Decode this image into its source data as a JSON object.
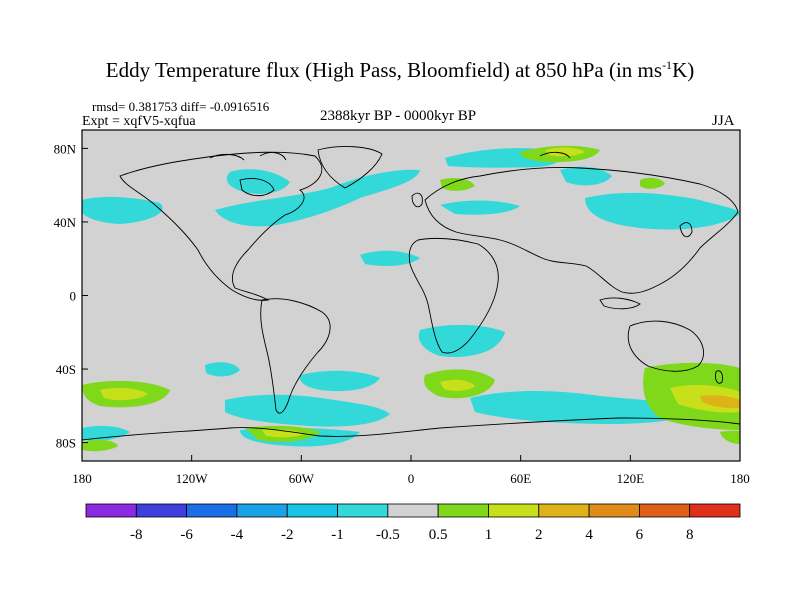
{
  "title": {
    "main": "Eddy Temperature flux (High Pass, Bloomfield) at 850 hPa (in ms",
    "sup": "-1",
    "unit_end": "K)"
  },
  "stats_line": "rmsd= 0.381753 diff= -0.0916516",
  "experiment": "Expt = xqfV5-xqfua",
  "period": "2388kyr BP - 0000kyr BP",
  "season": "JJA",
  "map": {
    "lon_range": [
      -180,
      180
    ],
    "lat_range": [
      -90,
      90
    ],
    "x_ticks": [
      {
        "lon": -180,
        "label": "180"
      },
      {
        "lon": -120,
        "label": "120W"
      },
      {
        "lon": -60,
        "label": "60W"
      },
      {
        "lon": 0,
        "label": "0"
      },
      {
        "lon": 60,
        "label": "60E"
      },
      {
        "lon": 120,
        "label": "120E"
      },
      {
        "lon": 180,
        "label": "180"
      }
    ],
    "y_ticks": [
      {
        "lat": 80,
        "label": "80N"
      },
      {
        "lat": 40,
        "label": "40N"
      },
      {
        "lat": 0,
        "label": "0"
      },
      {
        "lat": -40,
        "label": "40S"
      },
      {
        "lat": -80,
        "label": "80S"
      }
    ],
    "background_color": "#d2d2d2"
  },
  "colorbar": {
    "labels": [
      "-8",
      "-6",
      "-4",
      "-2",
      "-1",
      "-0.5",
      "0.5",
      "1",
      "2",
      "4",
      "6",
      "8"
    ],
    "colors": [
      "#8a2be2",
      "#3f3fe0",
      "#1a6fe6",
      "#1aa2e6",
      "#1ac4e6",
      "#33d9d9",
      "#d2d2d2",
      "#7fd91a",
      "#c7e01a",
      "#e0b21a",
      "#e08c1a",
      "#e0601a",
      "#e0301a"
    ]
  }
}
